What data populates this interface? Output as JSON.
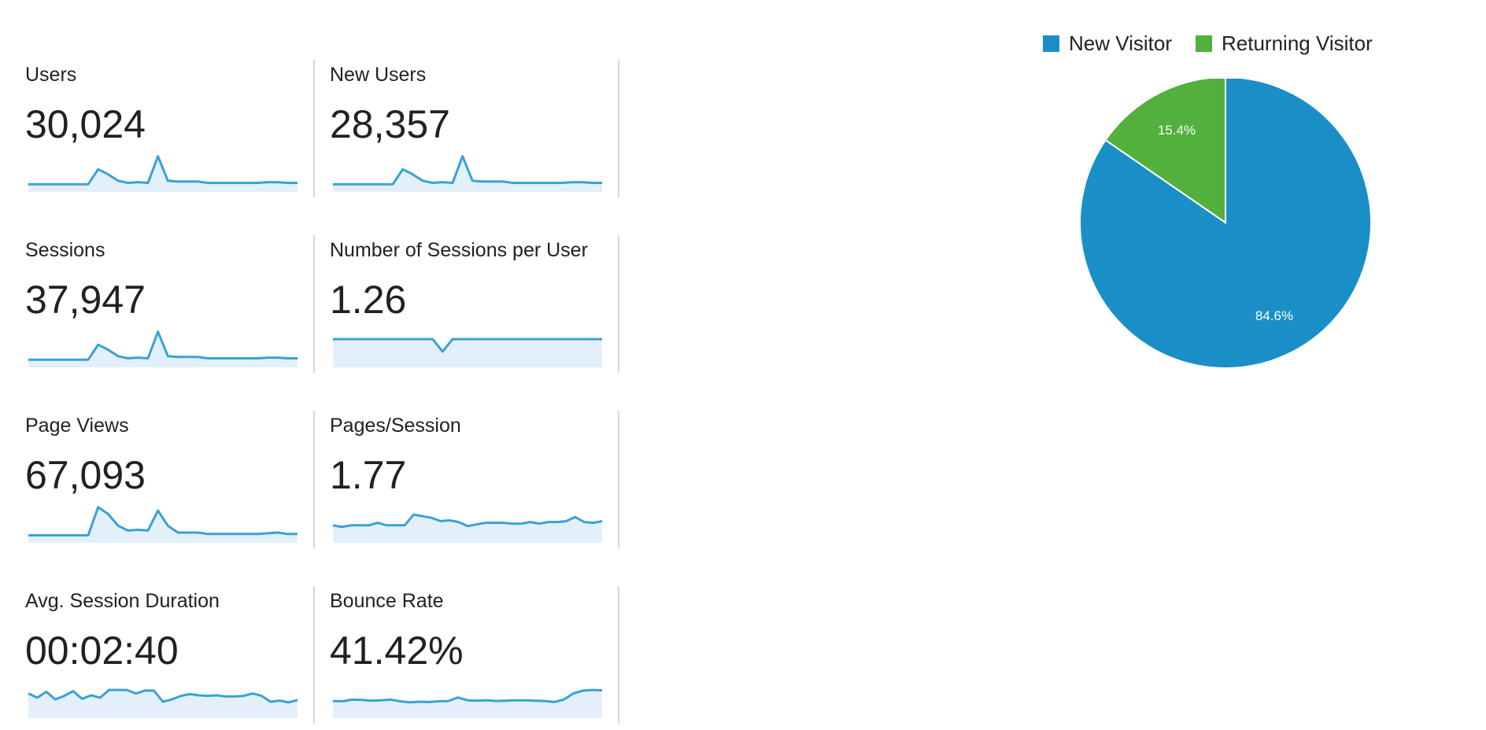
{
  "metrics": [
    {
      "title": "Users",
      "value": "30,024",
      "filled": false,
      "trend": [
        4,
        4,
        4,
        4,
        4,
        4,
        4,
        25,
        18,
        9,
        6,
        7,
        6,
        43,
        9,
        8,
        8,
        8,
        6,
        6,
        6,
        6,
        6,
        6,
        7,
        7,
        6,
        6
      ]
    },
    {
      "title": "New Users",
      "value": "28,357",
      "filled": false,
      "trend": [
        4,
        4,
        4,
        4,
        4,
        4,
        4,
        25,
        18,
        9,
        6,
        7,
        6,
        43,
        9,
        8,
        8,
        8,
        6,
        6,
        6,
        6,
        6,
        6,
        7,
        7,
        6,
        6
      ]
    },
    {
      "title": "Sessions",
      "value": "37,947",
      "filled": false,
      "trend": [
        4,
        4,
        4,
        4,
        4,
        4,
        4,
        25,
        18,
        9,
        6,
        7,
        6,
        43,
        9,
        8,
        8,
        8,
        6,
        6,
        6,
        6,
        6,
        6,
        7,
        7,
        6,
        6
      ]
    },
    {
      "title": "Number of Sessions per User",
      "value": "1.26",
      "filled": true,
      "trend": [
        1.26,
        1.26,
        1.26,
        1.26,
        1.26,
        1.26,
        1.26,
        1.26,
        1.26,
        1.26,
        1.26,
        1.25,
        1.26,
        1.26,
        1.26,
        1.26,
        1.26,
        1.26,
        1.26,
        1.26,
        1.26,
        1.26,
        1.26,
        1.26,
        1.26,
        1.26,
        1.26,
        1.26
      ]
    },
    {
      "title": "Page Views",
      "value": "67,093",
      "filled": false,
      "trend": [
        4,
        4,
        4,
        4,
        4,
        4,
        4,
        45,
        35,
        18,
        11,
        12,
        11,
        40,
        18,
        8,
        8,
        8,
        6,
        6,
        6,
        6,
        6,
        6,
        7,
        8,
        6,
        6
      ]
    },
    {
      "title": "Pages/Session",
      "value": "1.77",
      "filled": true,
      "trend": [
        1.73,
        1.71,
        1.73,
        1.73,
        1.73,
        1.76,
        1.73,
        1.73,
        1.73,
        1.86,
        1.84,
        1.82,
        1.78,
        1.79,
        1.77,
        1.72,
        1.74,
        1.76,
        1.76,
        1.76,
        1.75,
        1.75,
        1.77,
        1.75,
        1.77,
        1.77,
        1.78,
        1.83,
        1.77,
        1.76,
        1.78
      ]
    },
    {
      "title": "Avg. Session Duration",
      "value": "00:02:40",
      "filled": true,
      "trend": [
        150,
        143,
        153,
        140,
        146,
        154,
        141,
        147,
        143,
        156,
        156,
        156,
        150,
        155,
        155,
        136,
        140,
        146,
        149,
        147,
        146,
        147,
        145,
        145,
        146,
        150,
        146,
        136,
        138,
        135,
        139
      ]
    },
    {
      "title": "Bounce Rate",
      "value": "41.42%",
      "filled": true,
      "trend": [
        40.6,
        40.5,
        41.0,
        40.9,
        40.7,
        40.8,
        41.0,
        40.5,
        40.2,
        40.4,
        40.3,
        40.5,
        40.6,
        41.6,
        40.8,
        40.7,
        40.8,
        40.6,
        40.7,
        40.8,
        40.8,
        40.7,
        40.6,
        40.3,
        41.0,
        42.8,
        43.6,
        43.8,
        43.7
      ]
    }
  ],
  "chart_data": {
    "type": "pie",
    "legend_position": "top",
    "slices": [
      {
        "label": "New Visitor",
        "value": 84.6,
        "display": "84.6%",
        "color": "#1a8fc7"
      },
      {
        "label": "Returning Visitor",
        "value": 15.4,
        "display": "15.4%",
        "color": "#52b03c"
      }
    ]
  },
  "colors": {
    "sparkline_stroke": "#3aa1d6",
    "sparkline_fill": "#e3f0fa",
    "divider": "#d6d6d6"
  }
}
